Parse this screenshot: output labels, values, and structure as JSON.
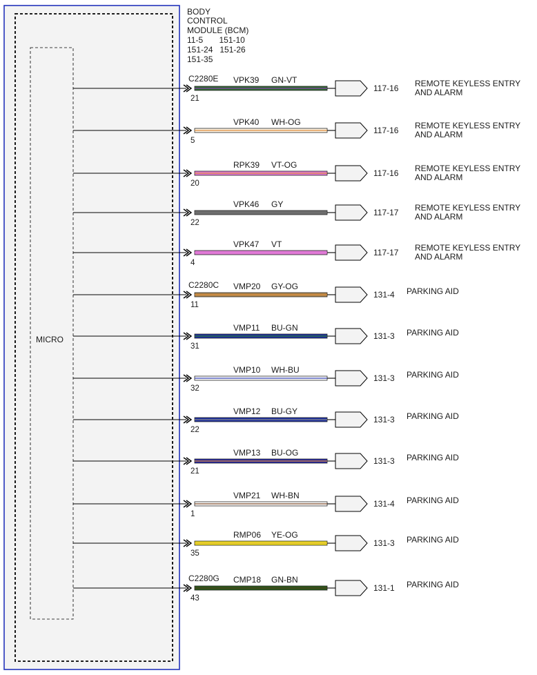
{
  "module": {
    "title_lines": [
      "BODY",
      "CONTROL",
      "MODULE (BCM)"
    ],
    "ref_lines": [
      "11-5       151-10",
      "151-24   151-26",
      "151-35"
    ],
    "internal_label": "MICRO"
  },
  "colors": {
    "GN-VT": {
      "main": "#2f6b2f",
      "stripe": "#8a3fb0"
    },
    "WH-OG": {
      "main": "#fff6e6",
      "stripe": "#d98a3a"
    },
    "VT-OG": {
      "main": "#e07ad6",
      "stripe": "#d98a3a"
    },
    "GY": {
      "main": "#6e6e6e",
      "stripe": "#6e6e6e"
    },
    "VT": {
      "main": "#e07ad6",
      "stripe": "#e07ad6"
    },
    "GY-OG": {
      "main": "#b0874e",
      "stripe": "#d98a3a"
    },
    "BU-GN": {
      "main": "#1c2fa0",
      "stripe": "#2e7a2e"
    },
    "WH-BU": {
      "main": "#ffffff",
      "stripe": "#3340b0"
    },
    "BU-GY": {
      "main": "#1c2fa0",
      "stripe": "#8a8a8a"
    },
    "BU-OG": {
      "main": "#2a2aa0",
      "stripe": "#d98a3a"
    },
    "WH-BN": {
      "main": "#ffffff",
      "stripe": "#7a4a2a"
    },
    "YE-OG": {
      "main": "#f0e020",
      "stripe": "#d9b03a"
    },
    "GN-BN": {
      "main": "#2c5a1c",
      "stripe": "#4a3a1a"
    }
  },
  "wires": [
    {
      "connector": "C2280E",
      "pin": "21",
      "circuit": "VPK39",
      "color": "GN-VT",
      "ref": "117-16",
      "dest": [
        "REMOTE KEYLESS ENTRY",
        "AND ALARM"
      ]
    },
    {
      "connector": "",
      "pin": "5",
      "circuit": "VPK40",
      "color": "WH-OG",
      "ref": "117-16",
      "dest": [
        "REMOTE KEYLESS ENTRY",
        "AND ALARM"
      ]
    },
    {
      "connector": "",
      "pin": "20",
      "circuit": "RPK39",
      "color": "VT-OG",
      "ref": "117-16",
      "dest": [
        "REMOTE KEYLESS ENTRY",
        "AND ALARM"
      ]
    },
    {
      "connector": "",
      "pin": "22",
      "circuit": "VPK46",
      "color": "GY",
      "ref": "117-17",
      "dest": [
        "REMOTE KEYLESS ENTRY",
        "AND ALARM"
      ]
    },
    {
      "connector": "",
      "pin": "4",
      "circuit": "VPK47",
      "color": "VT",
      "ref": "117-17",
      "dest": [
        "REMOTE KEYLESS ENTRY",
        "AND ALARM"
      ]
    },
    {
      "connector": "C2280C",
      "pin": "11",
      "circuit": "VMP20",
      "color": "GY-OG",
      "ref": "131-4",
      "dest": [
        "PARKING AID"
      ]
    },
    {
      "connector": "",
      "pin": "31",
      "circuit": "VMP11",
      "color": "BU-GN",
      "ref": "131-3",
      "dest": [
        "PARKING AID"
      ]
    },
    {
      "connector": "",
      "pin": "32",
      "circuit": "VMP10",
      "color": "WH-BU",
      "ref": "131-3",
      "dest": [
        "PARKING AID"
      ]
    },
    {
      "connector": "",
      "pin": "22",
      "circuit": "VMP12",
      "color": "BU-GY",
      "ref": "131-3",
      "dest": [
        "PARKING AID"
      ]
    },
    {
      "connector": "",
      "pin": "21",
      "circuit": "VMP13",
      "color": "BU-OG",
      "ref": "131-3",
      "dest": [
        "PARKING AID"
      ]
    },
    {
      "connector": "",
      "pin": "1",
      "circuit": "VMP21",
      "color": "WH-BN",
      "ref": "131-4",
      "dest": [
        "PARKING AID"
      ]
    },
    {
      "connector": "",
      "pin": "35",
      "circuit": "RMP06",
      "color": "YE-OG",
      "ref": "131-3",
      "dest": [
        "PARKING AID"
      ]
    },
    {
      "connector": "C2280G",
      "pin": "43",
      "circuit": "CMP18",
      "color": "GN-BN",
      "ref": "131-1",
      "dest": [
        "PARKING AID"
      ]
    }
  ]
}
